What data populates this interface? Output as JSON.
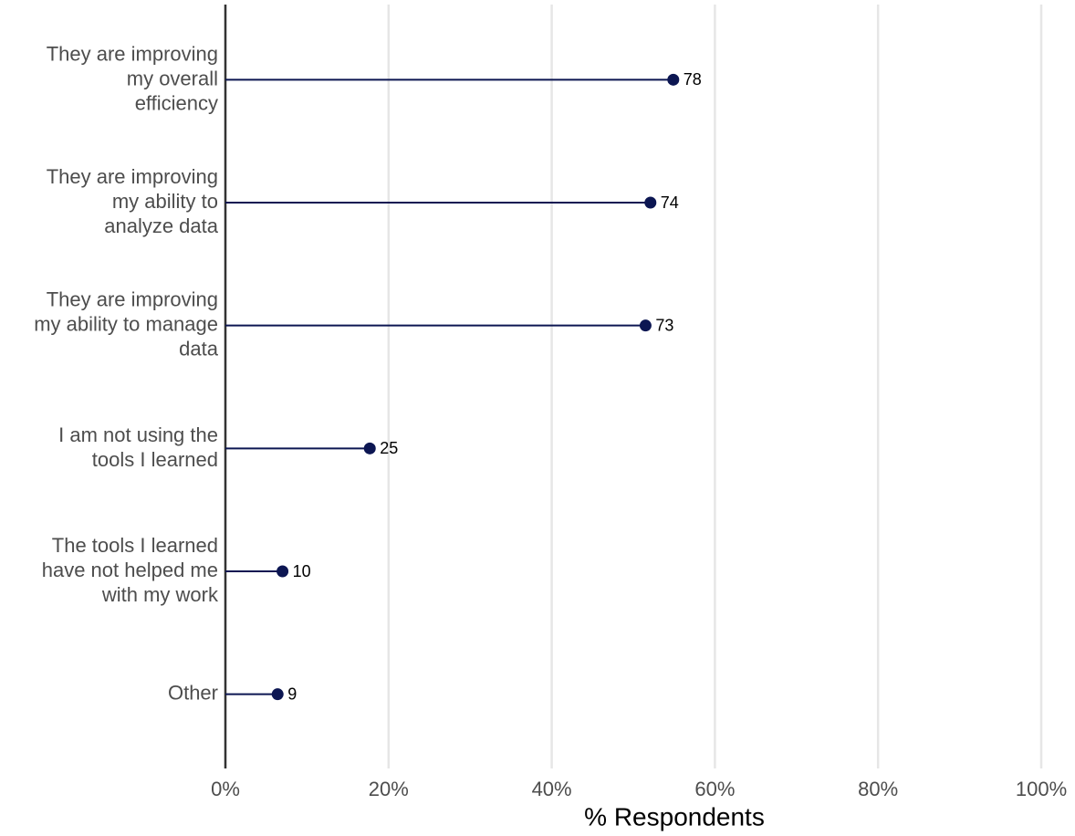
{
  "chart_data": {
    "type": "lollipop",
    "x_label": "% Respondents",
    "categories": [
      "They are improving my overall efficiency",
      "They are improving my ability to analyze data",
      "They are improving my ability to manage data",
      "I am not using the tools I learned",
      "The tools I learned have not helped me with my work",
      "Other"
    ],
    "values": [
      54.9,
      52.1,
      51.5,
      17.7,
      7.0,
      6.4
    ],
    "counts": [
      78,
      74,
      73,
      25,
      10,
      9
    ],
    "color": "#0c1652",
    "xlim": [
      0,
      100
    ],
    "xticks": [
      {
        "value": 0,
        "label": "0%"
      },
      {
        "value": 20,
        "label": "20%"
      },
      {
        "value": 40,
        "label": "40%"
      },
      {
        "value": 60,
        "label": "60%"
      },
      {
        "value": 80,
        "label": "80%"
      },
      {
        "value": 100,
        "label": "100%"
      }
    ],
    "grid": true
  }
}
